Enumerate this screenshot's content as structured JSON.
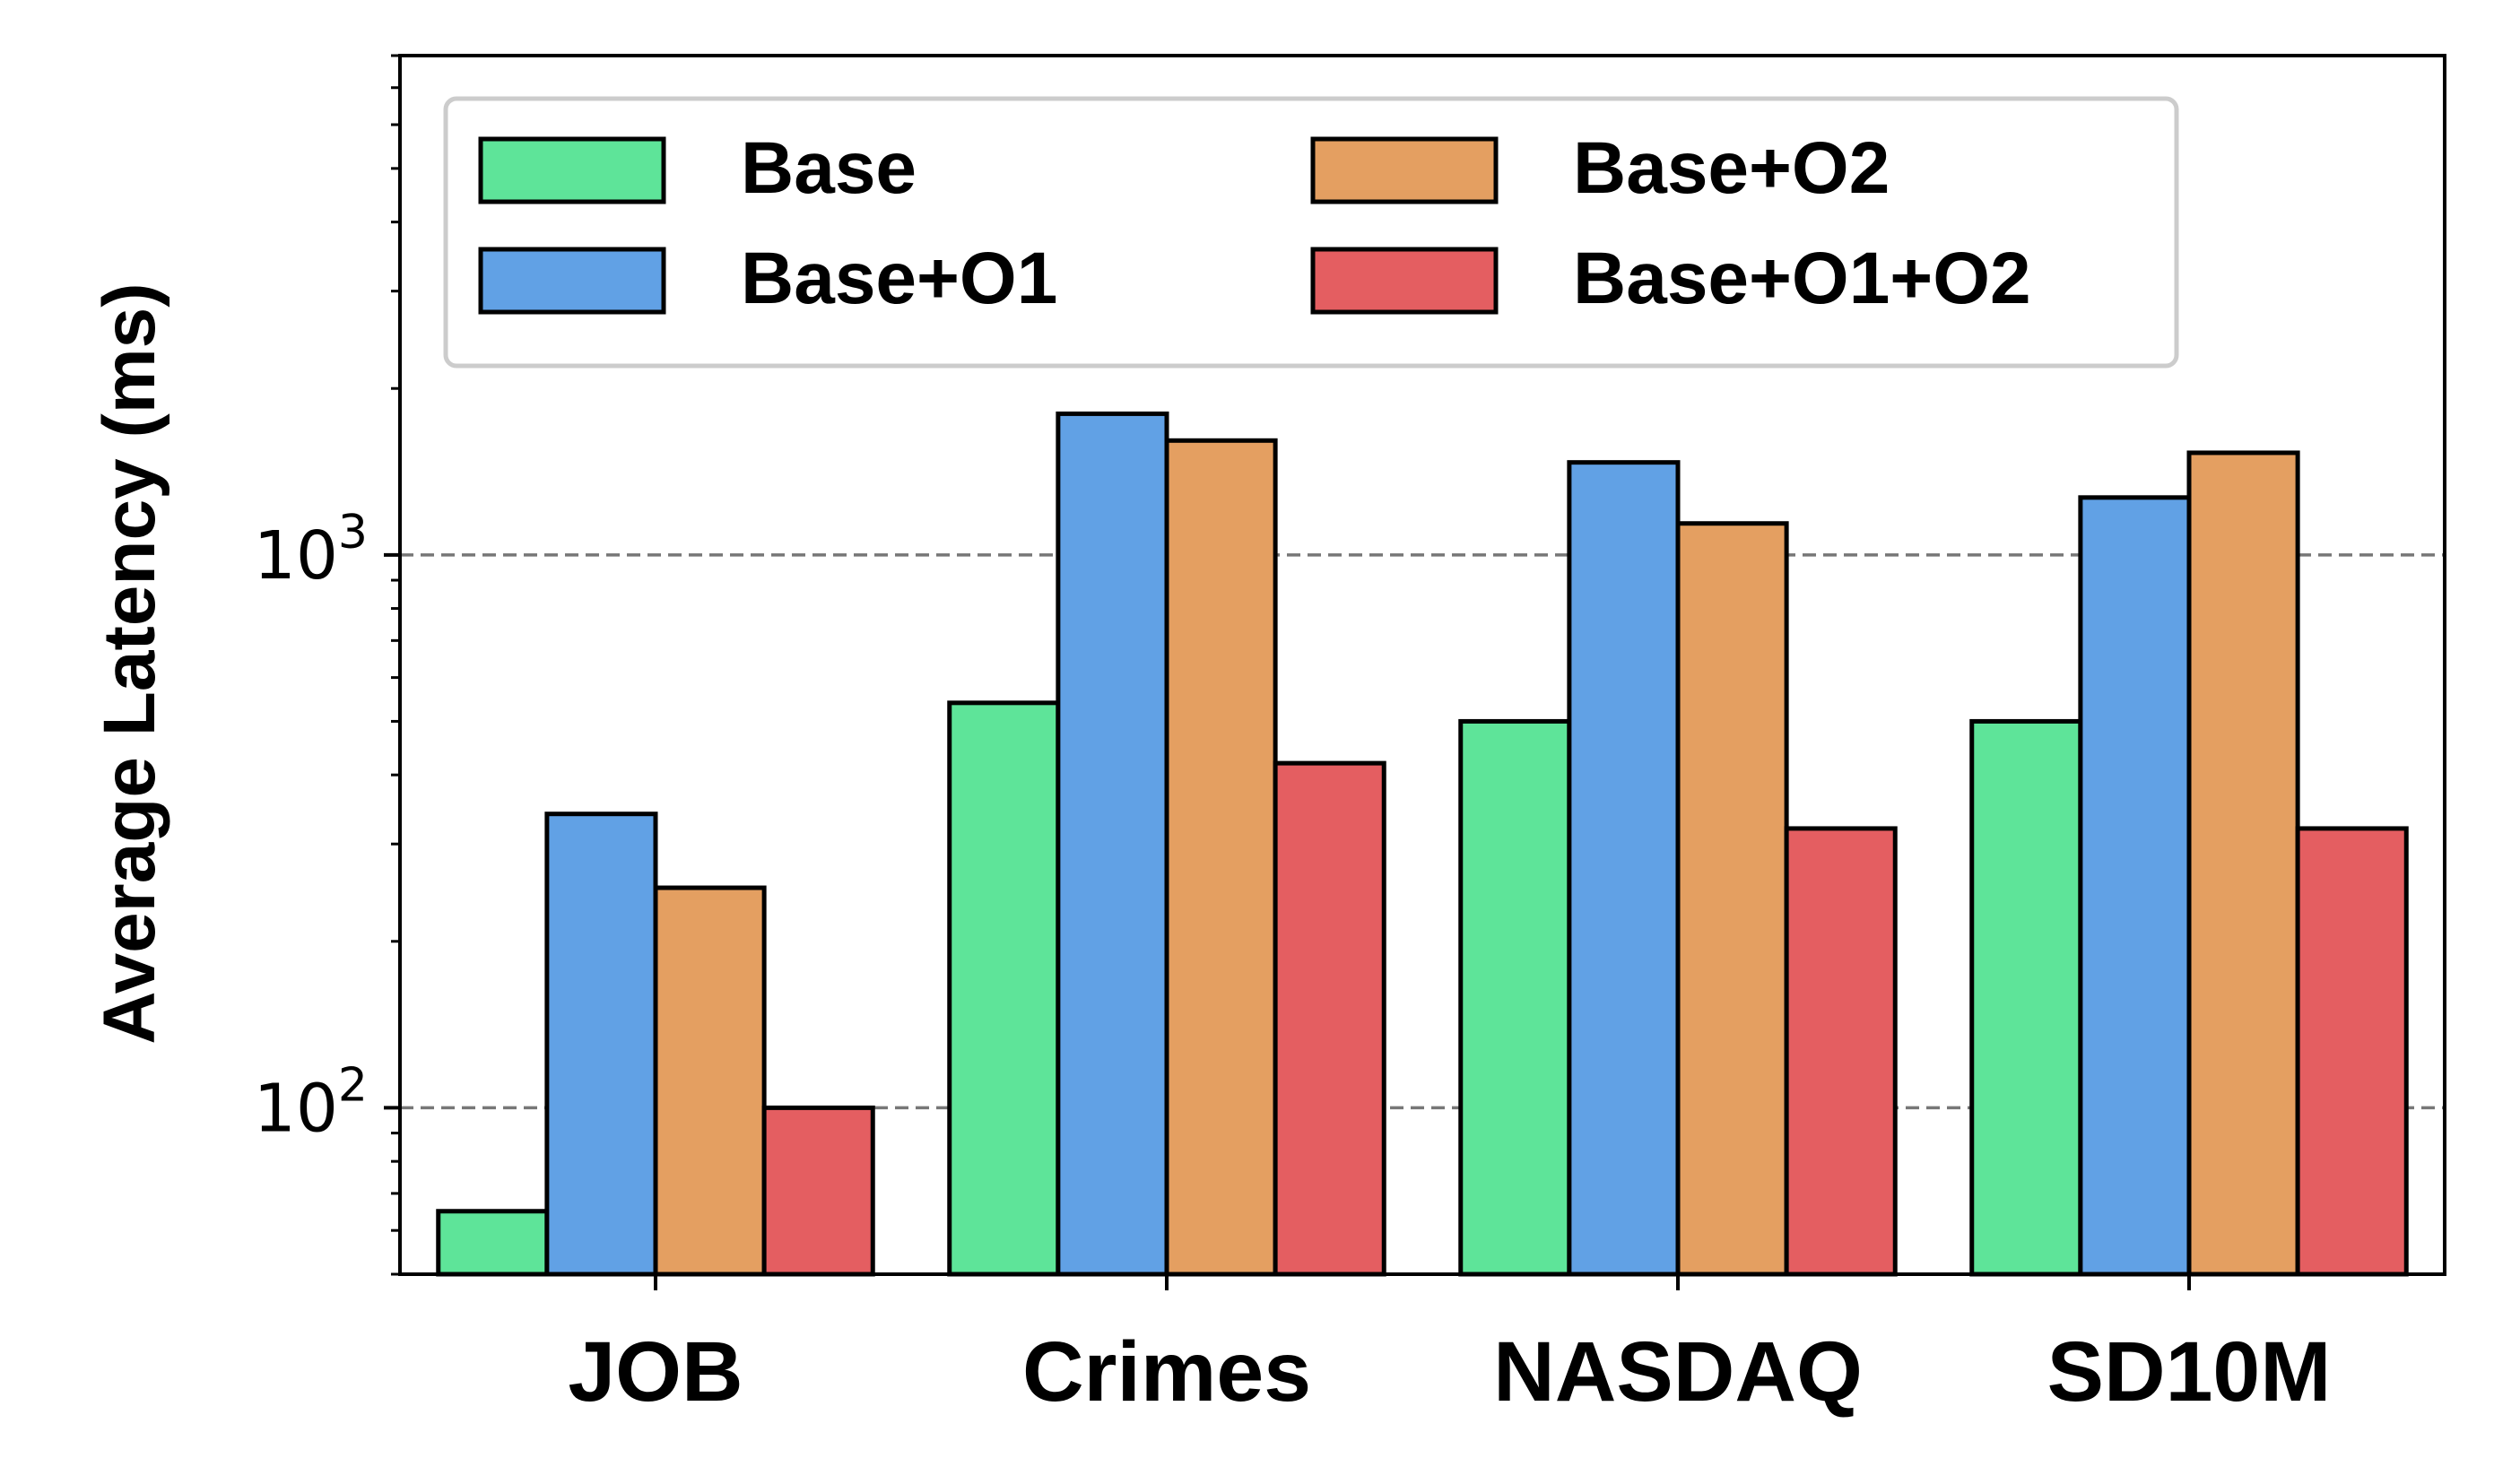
{
  "chart_data": {
    "type": "bar",
    "title": "",
    "xlabel": "",
    "ylabel": "Average Latency (ms)",
    "yscale": "log",
    "ylim": [
      50,
      8000
    ],
    "ytick_labels": [
      {
        "base": "10",
        "exp": "2",
        "value": 100
      },
      {
        "base": "10",
        "exp": "3",
        "value": 1000
      }
    ],
    "grid": "y major, dashed",
    "legend_position": "top-left",
    "legend_columns": 2,
    "categories": [
      "JOB",
      "Crimes",
      "NASDAQ",
      "SD10M"
    ],
    "series": [
      {
        "name": "Base",
        "color": "#5ee499",
        "values": [
          65,
          540,
          500,
          500
        ]
      },
      {
        "name": "Base+O1",
        "color": "#61a1e5",
        "values": [
          340,
          1800,
          1470,
          1270
        ]
      },
      {
        "name": "Base+O2",
        "color": "#e49f61",
        "values": [
          250,
          1610,
          1140,
          1530
        ]
      },
      {
        "name": "Base+O1+O2",
        "color": "#e45e61",
        "values": [
          100,
          420,
          320,
          320
        ]
      }
    ]
  }
}
